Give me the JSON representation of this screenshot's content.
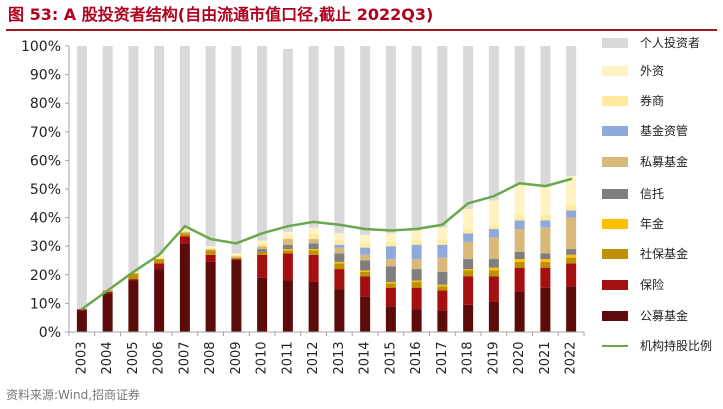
{
  "title": "图 53:  A 股投资者结构(自由流通市值口径,截止 2022Q3)",
  "source": "资料来源:Wind,招商证券",
  "colors": {
    "title": "#b0001e",
    "gerentouzizhe": "#d9d9d9",
    "waizi": "#fff3c4",
    "quanshang": "#ffeaa0",
    "jijinziguan": "#8ea9db",
    "simujijin": "#d9b979",
    "xintuo": "#7f7f7f",
    "nianjin": "#ffc000",
    "shebaojijin": "#bf9000",
    "baoxian": "#a50f0f",
    "gongmujijin": "#5c0a0a",
    "line": "#6aa84f"
  },
  "chart_data": {
    "type": "bar",
    "stacked": true,
    "categories": [
      "2003",
      "2004",
      "2005",
      "2006",
      "2007",
      "2008",
      "2009",
      "2010",
      "2011",
      "2012",
      "2013",
      "2014",
      "2015",
      "2016",
      "2017",
      "2018",
      "2019",
      "2020",
      "2021",
      "2022"
    ],
    "y_ticks": [
      "0%",
      "10%",
      "20%",
      "30%",
      "40%",
      "50%",
      "60%",
      "70%",
      "80%",
      "90%",
      "100%"
    ],
    "ylim": [
      0,
      100
    ],
    "series": [
      {
        "name": "公募基金",
        "key": "gongmujijin",
        "values": [
          7.5,
          13.5,
          18,
          22,
          31,
          24.5,
          25,
          19,
          18,
          17.5,
          15,
          12.5,
          9,
          8,
          7.5,
          9.5,
          10.5,
          14,
          15.5,
          16
        ]
      },
      {
        "name": "保险",
        "key": "baoxian",
        "values": [
          0.5,
          0.5,
          0.5,
          2,
          2.5,
          2.5,
          0.5,
          8,
          9.5,
          9.5,
          7,
          7,
          6.5,
          7.5,
          7,
          10,
          9,
          8.5,
          7,
          8
        ]
      },
      {
        "name": "社保基金",
        "key": "shebaojijin",
        "values": [
          0,
          0.5,
          2,
          1.5,
          1,
          1.5,
          0.5,
          1,
          1,
          1.5,
          2,
          1.5,
          1.5,
          2,
          1.5,
          2,
          2,
          2,
          2,
          2
        ]
      },
      {
        "name": "年金",
        "key": "nianjin",
        "values": [
          0,
          0,
          0,
          0,
          0,
          0,
          0,
          0,
          0.5,
          0.5,
          0.5,
          0.5,
          0.5,
          0.5,
          0.5,
          0.5,
          1,
          1,
          1,
          1
        ]
      },
      {
        "name": "信托",
        "key": "xintuo",
        "values": [
          0,
          0,
          0,
          0,
          0,
          0,
          0,
          1,
          1.5,
          2,
          3,
          3.5,
          5.5,
          4,
          4.5,
          3.5,
          3,
          2.5,
          2,
          2
        ]
      },
      {
        "name": "私募基金",
        "key": "simujijin",
        "values": [
          0,
          0,
          0,
          0,
          0.5,
          0.5,
          0.5,
          1,
          2,
          1.5,
          2,
          2,
          2.5,
          3.5,
          5,
          6,
          7.5,
          8,
          9,
          11
        ]
      },
      {
        "name": "基金资管",
        "key": "jijinziguan",
        "values": [
          0,
          0,
          0,
          0,
          0,
          0,
          0,
          0,
          0,
          0,
          1,
          2.5,
          4.5,
          5,
          4.5,
          3,
          3,
          3,
          2.5,
          2.5
        ]
      },
      {
        "name": "券商",
        "key": "quanshang",
        "values": [
          0,
          0,
          0.5,
          1,
          0.5,
          0.5,
          0.5,
          1,
          1,
          2,
          1.5,
          1.5,
          1.5,
          1.5,
          1.5,
          1.5,
          1.5,
          2,
          2,
          2
        ]
      },
      {
        "name": "外资",
        "key": "waizi",
        "values": [
          0,
          0,
          0,
          0.5,
          1,
          0.5,
          0.5,
          1,
          1.5,
          2,
          2.5,
          3,
          3,
          3.5,
          4.5,
          7,
          8.5,
          10.5,
          10.5,
          10
        ]
      },
      {
        "name": "个人投资者",
        "key": "gerentouzizhe",
        "values": [
          92,
          85.5,
          79,
          73,
          63.5,
          70,
          72.5,
          68,
          64,
          63.5,
          65.5,
          66,
          65.5,
          64.5,
          63.5,
          57,
          54,
          48.5,
          48.5,
          45.5
        ]
      }
    ],
    "line": {
      "name": "机构持股比例",
      "key": "line",
      "values": [
        8,
        14.5,
        21,
        27,
        37,
        32.5,
        31,
        34.5,
        37,
        38.5,
        37.5,
        36,
        35.5,
        36,
        37.5,
        45,
        47.5,
        52,
        51,
        53.5
      ]
    },
    "legend_order": [
      "gerentouzizhe",
      "waizi",
      "quanshang",
      "jijinziguan",
      "simujijin",
      "xintuo",
      "nianjin",
      "shebaojijin",
      "baoxian",
      "gongmujijin",
      "line"
    ],
    "legend_position": "right",
    "grid": false
  }
}
